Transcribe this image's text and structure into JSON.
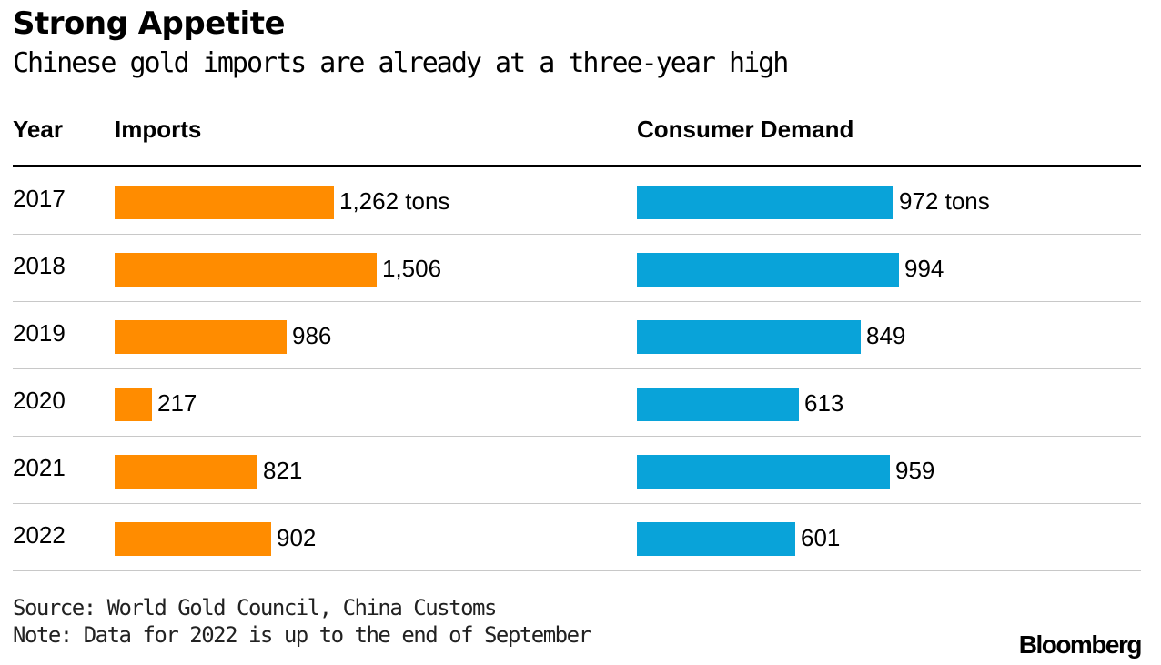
{
  "title": "Strong Appetite",
  "subtitle": "Chinese gold imports are already at a three-year high",
  "headers": {
    "year": "Year",
    "imports": "Imports",
    "demand": "Consumer Demand"
  },
  "chart_data": {
    "type": "bar",
    "title": "Strong Appetite",
    "subtitle": "Chinese gold imports are already at a three-year high",
    "categories": [
      "2017",
      "2018",
      "2019",
      "2020",
      "2021",
      "2022"
    ],
    "series": [
      {
        "name": "Imports",
        "color": "#ff8c00",
        "values": [
          1262,
          1506,
          986,
          217,
          821,
          902
        ],
        "labels": [
          "1,262 tons",
          "1,506",
          "986",
          "217",
          "821",
          "902"
        ]
      },
      {
        "name": "Consumer Demand",
        "color": "#09a3d9",
        "values": [
          972,
          994,
          849,
          613,
          959,
          601
        ],
        "labels": [
          "972 tons",
          "994",
          "849",
          "613",
          "959",
          "601"
        ]
      }
    ],
    "unit": "tons"
  },
  "footer": {
    "source": "Source: World Gold Council, China Customs",
    "note": "Note: Data for 2022 is up to the end of September",
    "brand": "Bloomberg"
  }
}
